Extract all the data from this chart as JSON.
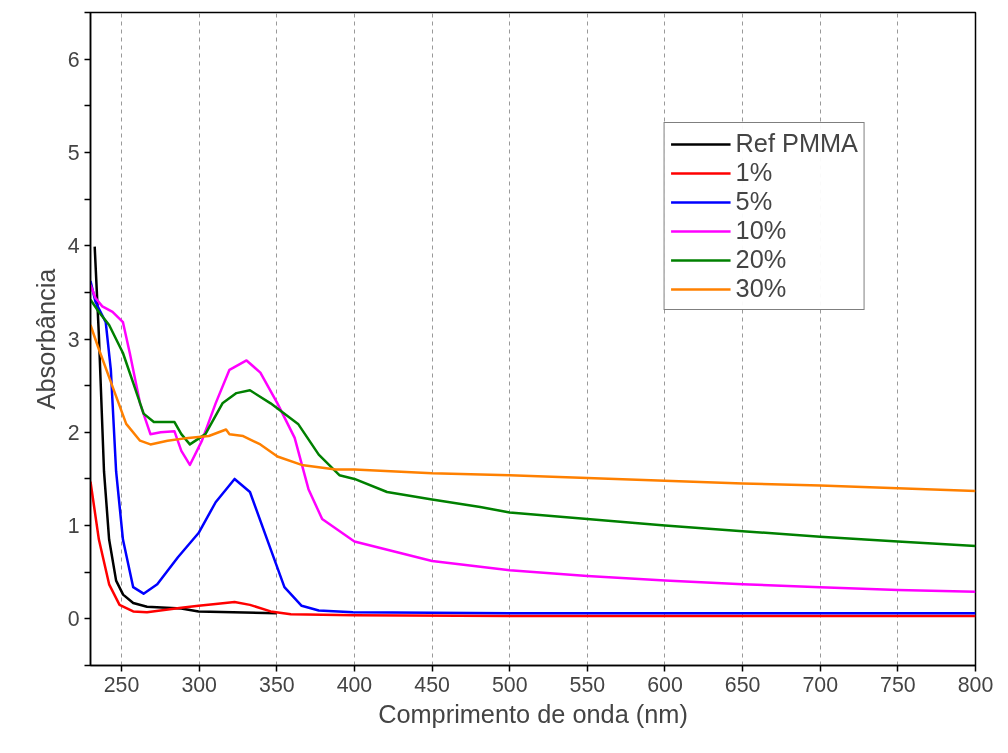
{
  "chart_data": {
    "type": "line",
    "xlabel": "Comprimento de onda (nm)",
    "ylabel": "Absorbância",
    "xlim": [
      230,
      800
    ],
    "ylim": [
      -0.5,
      6.5
    ],
    "xticks": [
      250,
      300,
      350,
      400,
      450,
      500,
      550,
      600,
      650,
      700,
      750,
      800
    ],
    "yticks": [
      {
        "value": -0.5,
        "label": null
      },
      0,
      {
        "value": 0.5,
        "label": null
      },
      1,
      {
        "value": 1.5,
        "label": null
      },
      2,
      {
        "value": 2.5,
        "label": null
      },
      3,
      {
        "value": 3.5,
        "label": null
      },
      4,
      {
        "value": 4.5,
        "label": null
      },
      5,
      {
        "value": 5.5,
        "label": null
      },
      6,
      {
        "value": 6.5,
        "label": null
      }
    ],
    "grid": "x",
    "legend": "top right",
    "line_style": "solid",
    "series": [
      {
        "name": "Ref PMMA",
        "color": "#000000",
        "x": [
          232.7,
          235.4,
          238.7,
          242,
          246.5,
          251,
          257.5,
          266.4,
          288.5,
          299.6,
          321.7,
          350
        ],
        "values": [
          3.99,
          3.04,
          1.58,
          0.85,
          0.41,
          0.26,
          0.17,
          0.13,
          0.11,
          0.08,
          0.07,
          0.06
        ]
      },
      {
        "name": "1%",
        "color": "#ff0000",
        "x": [
          230,
          235.4,
          242,
          248.7,
          257.5,
          266.4,
          288.5,
          299.6,
          310.6,
          322.8,
          332.7,
          346,
          359,
          400,
          500,
          600,
          700,
          800
        ],
        "values": [
          1.47,
          0.85,
          0.37,
          0.15,
          0.08,
          0.07,
          0.12,
          0.14,
          0.16,
          0.18,
          0.15,
          0.08,
          0.05,
          0.04,
          0.03,
          0.03,
          0.03,
          0.03
        ]
      },
      {
        "name": "5%",
        "color": "#0000ff",
        "x": [
          230,
          233.2,
          239.8,
          243.1,
          246.5,
          250.9,
          257.5,
          264.2,
          273,
          286.3,
          299.6,
          310.6,
          322.8,
          332.7,
          343.8,
          354.9,
          366,
          377,
          399,
          500,
          600,
          700,
          800
        ],
        "values": [
          3.62,
          3.4,
          3.18,
          2.67,
          1.58,
          0.85,
          0.34,
          0.27,
          0.37,
          0.66,
          0.92,
          1.25,
          1.5,
          1.36,
          0.85,
          0.34,
          0.14,
          0.09,
          0.07,
          0.06,
          0.06,
          0.06,
          0.06
        ]
      },
      {
        "name": "10%",
        "color": "#ff00ff",
        "x": [
          230,
          233.2,
          237.6,
          244.2,
          250.9,
          255.3,
          261.9,
          268.6,
          275.2,
          284.1,
          288.5,
          294,
          301.8,
          310.6,
          319.5,
          330.5,
          339.4,
          350.4,
          361.5,
          370.4,
          379.2,
          400,
          450,
          500,
          550,
          600,
          650,
          700,
          750,
          800
        ],
        "values": [
          3.58,
          3.44,
          3.35,
          3.29,
          3.18,
          2.85,
          2.31,
          1.98,
          2.0,
          2.01,
          1.8,
          1.65,
          1.91,
          2.31,
          2.67,
          2.77,
          2.64,
          2.31,
          1.94,
          1.39,
          1.07,
          0.83,
          0.62,
          0.52,
          0.46,
          0.41,
          0.37,
          0.34,
          0.31,
          0.29
        ]
      },
      {
        "name": "20%",
        "color": "#008000",
        "x": [
          230,
          235.4,
          242,
          250.9,
          257.5,
          264.2,
          270.8,
          284.1,
          288.5,
          294,
          304,
          315,
          324,
          332.7,
          346,
          363.7,
          377,
          390.3,
          400,
          421,
          450,
          481,
          500,
          550,
          600,
          650,
          700,
          750,
          800
        ],
        "values": [
          3.42,
          3.29,
          3.15,
          2.85,
          2.53,
          2.2,
          2.11,
          2.11,
          1.98,
          1.87,
          1.98,
          2.31,
          2.42,
          2.45,
          2.31,
          2.09,
          1.76,
          1.54,
          1.5,
          1.36,
          1.28,
          1.2,
          1.14,
          1.07,
          1.0,
          0.94,
          0.88,
          0.83,
          0.78
        ]
      },
      {
        "name": "30%",
        "color": "#ff8000",
        "x": [
          230,
          235.4,
          244.2,
          253,
          261.9,
          268.6,
          279.6,
          293,
          306.2,
          317.3,
          319.5,
          328.3,
          339.4,
          350.4,
          366,
          388,
          400,
          450,
          500,
          550,
          600,
          650,
          700,
          750,
          800
        ],
        "values": [
          3.15,
          2.89,
          2.49,
          2.09,
          1.91,
          1.87,
          1.91,
          1.94,
          1.96,
          2.03,
          1.98,
          1.96,
          1.87,
          1.74,
          1.65,
          1.6,
          1.6,
          1.56,
          1.54,
          1.51,
          1.48,
          1.45,
          1.43,
          1.4,
          1.37
        ]
      }
    ]
  }
}
